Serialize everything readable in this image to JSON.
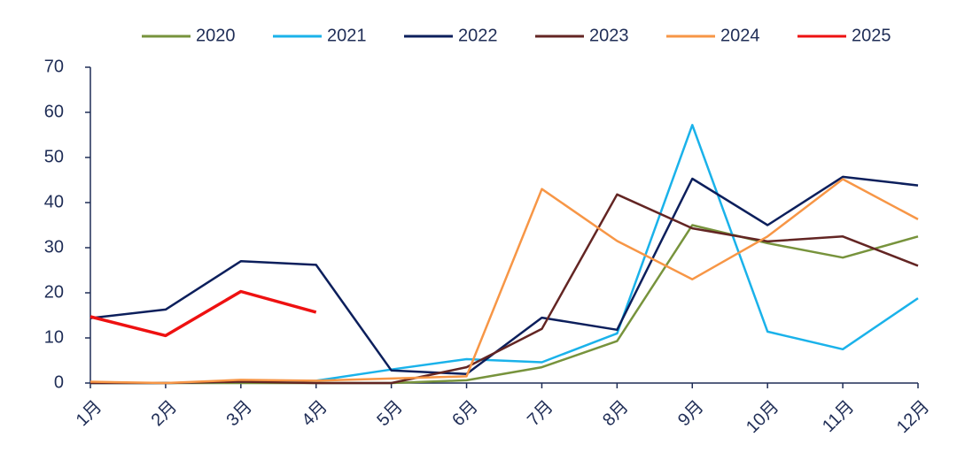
{
  "chart_data": {
    "type": "line",
    "categories": [
      "1月",
      "2月",
      "3月",
      "4月",
      "5月",
      "6月",
      "7月",
      "8月",
      "9月",
      "10月",
      "11月",
      "12月"
    ],
    "series": [
      {
        "name": "2020",
        "color": "#77933c",
        "values": [
          0,
          0,
          0,
          0,
          0,
          0.6,
          3.5,
          9.3,
          35,
          31,
          27.8,
          32.5
        ]
      },
      {
        "name": "2021",
        "color": "#1ab2ea",
        "values": [
          0,
          0,
          0.3,
          0.5,
          3,
          5.3,
          4.6,
          11,
          57.2,
          11.4,
          7.5,
          18.8
        ]
      },
      {
        "name": "2022",
        "color": "#0c1f5c",
        "values": [
          14.4,
          16.3,
          27,
          26.2,
          2.8,
          2,
          14.5,
          11.8,
          45.3,
          35,
          45.7,
          43.8
        ]
      },
      {
        "name": "2023",
        "color": "#632523",
        "values": [
          0,
          0,
          0.3,
          0,
          0,
          3.5,
          12,
          41.8,
          34.3,
          31.4,
          32.5,
          26
        ]
      },
      {
        "name": "2024",
        "color": "#f79646",
        "values": [
          0.3,
          0,
          0.7,
          0.5,
          1,
          1.5,
          43,
          31.5,
          23,
          32.5,
          45.2,
          36.3
        ]
      },
      {
        "name": "2025",
        "color": "#ee1111",
        "values": [
          14.7,
          10.5,
          20.3,
          15.7,
          null,
          null,
          null,
          null,
          null,
          null,
          null,
          null
        ]
      }
    ],
    "ylim": [
      0,
      70
    ],
    "yticks": [
      0,
      10,
      20,
      30,
      40,
      50,
      60,
      70
    ],
    "grid": false,
    "legend": "top"
  }
}
